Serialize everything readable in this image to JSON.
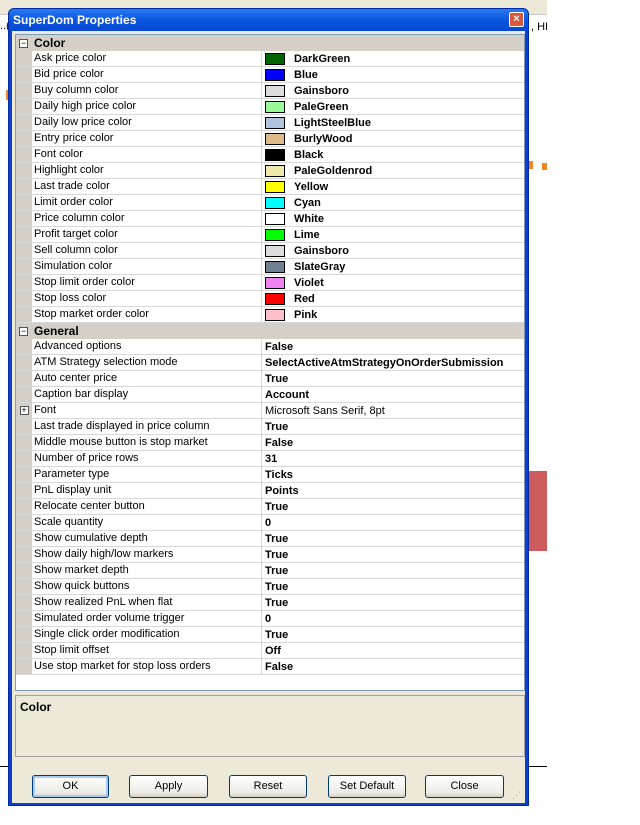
{
  "background": {
    "left_text": "..(",
    "right_text": ", HI"
  },
  "dialog": {
    "title": "SuperDom Properties",
    "close_glyph": "×"
  },
  "categories": [
    {
      "label": "Color",
      "expanded_glyph": "−",
      "rows": [
        {
          "name": "Ask price color",
          "value": "DarkGreen",
          "color": "#006400"
        },
        {
          "name": "Bid price color",
          "value": "Blue",
          "color": "#0000ff"
        },
        {
          "name": "Buy column color",
          "value": "Gainsboro",
          "color": "#dcdcdc"
        },
        {
          "name": "Daily high price color",
          "value": "PaleGreen",
          "color": "#98fb98"
        },
        {
          "name": "Daily low price color",
          "value": "LightSteelBlue",
          "color": "#b0c4de"
        },
        {
          "name": "Entry price color",
          "value": "BurlyWood",
          "color": "#deb887"
        },
        {
          "name": "Font color",
          "value": "Black",
          "color": "#000000"
        },
        {
          "name": "Highlight color",
          "value": "PaleGoldenrod",
          "color": "#eee8aa"
        },
        {
          "name": "Last trade color",
          "value": "Yellow",
          "color": "#ffff00"
        },
        {
          "name": "Limit order color",
          "value": "Cyan",
          "color": "#00ffff"
        },
        {
          "name": "Price column color",
          "value": "White",
          "color": "#ffffff"
        },
        {
          "name": "Profit target color",
          "value": "Lime",
          "color": "#00ff00"
        },
        {
          "name": "Sell column color",
          "value": "Gainsboro",
          "color": "#dcdcdc"
        },
        {
          "name": "Simulation color",
          "value": "SlateGray",
          "color": "#708090"
        },
        {
          "name": "Stop limit order color",
          "value": "Violet",
          "color": "#ee82ee"
        },
        {
          "name": "Stop loss color",
          "value": "Red",
          "color": "#ff0000"
        },
        {
          "name": "Stop market order color",
          "value": "Pink",
          "color": "#ffc0cb"
        }
      ]
    },
    {
      "label": "General",
      "expanded_glyph": "−",
      "rows": [
        {
          "name": "Advanced options",
          "value": "False"
        },
        {
          "name": "ATM Strategy selection mode",
          "value": "SelectActiveAtmStrategyOnOrderSubmission"
        },
        {
          "name": "Auto center price",
          "value": "True"
        },
        {
          "name": "Caption bar display",
          "value": "Account"
        },
        {
          "name": "Font",
          "value": "Microsoft Sans Serif, 8pt",
          "expandable": "+",
          "normal": true
        },
        {
          "name": "Last trade displayed in price column",
          "value": "True"
        },
        {
          "name": "Middle mouse button is stop market",
          "value": "False"
        },
        {
          "name": "Number of price rows",
          "value": "31"
        },
        {
          "name": "Parameter type",
          "value": "Ticks"
        },
        {
          "name": "PnL display unit",
          "value": "Points"
        },
        {
          "name": "Relocate center button",
          "value": "True"
        },
        {
          "name": "Scale quantity",
          "value": "0"
        },
        {
          "name": "Show cumulative depth",
          "value": "True"
        },
        {
          "name": "Show daily high/low markers",
          "value": "True"
        },
        {
          "name": "Show market depth",
          "value": "True"
        },
        {
          "name": "Show quick buttons",
          "value": "True"
        },
        {
          "name": "Show realized PnL when flat",
          "value": "True"
        },
        {
          "name": "Simulated order volume trigger",
          "value": "0"
        },
        {
          "name": "Single click order modification",
          "value": "True"
        },
        {
          "name": "Stop limit offset",
          "value": "Off"
        },
        {
          "name": "Use stop market for stop loss orders",
          "value": "False"
        }
      ]
    }
  ],
  "description": {
    "title": "Color"
  },
  "buttons": {
    "ok": "OK",
    "apply": "Apply",
    "reset": "Reset",
    "set_default": "Set Default",
    "close": "Close"
  }
}
